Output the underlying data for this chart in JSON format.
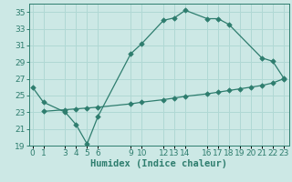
{
  "xlabel": "Humidex (Indice chaleur)",
  "bg_color": "#cce8e5",
  "grid_color": "#b0d8d4",
  "line_color": "#2e7d6e",
  "x_ticks": [
    0,
    1,
    3,
    4,
    5,
    6,
    9,
    10,
    12,
    13,
    14,
    16,
    17,
    18,
    19,
    20,
    21,
    22,
    23
  ],
  "ylim": [
    19,
    36
  ],
  "xlim": [
    -0.3,
    23.5
  ],
  "yticks": [
    19,
    21,
    23,
    25,
    27,
    29,
    31,
    33,
    35
  ],
  "curve1_x": [
    0,
    1,
    3,
    4,
    5,
    6,
    9,
    10,
    12,
    13,
    14,
    16,
    17,
    18,
    21,
    22,
    23
  ],
  "curve1_y": [
    26.0,
    24.2,
    23.0,
    21.5,
    19.2,
    22.5,
    30.0,
    31.2,
    34.0,
    34.3,
    35.2,
    34.2,
    34.2,
    33.5,
    29.5,
    29.1,
    27.1
  ],
  "curve2_x": [
    1,
    3,
    4,
    5,
    6,
    9,
    10,
    12,
    13,
    14,
    16,
    17,
    18,
    19,
    20,
    21,
    22,
    23
  ],
  "curve2_y": [
    23.1,
    23.3,
    23.4,
    23.5,
    23.6,
    24.0,
    24.2,
    24.5,
    24.7,
    24.9,
    25.2,
    25.4,
    25.6,
    25.8,
    26.0,
    26.2,
    26.5,
    27.0
  ],
  "tick_fontsize": 6.5,
  "xlabel_fontsize": 7.5
}
